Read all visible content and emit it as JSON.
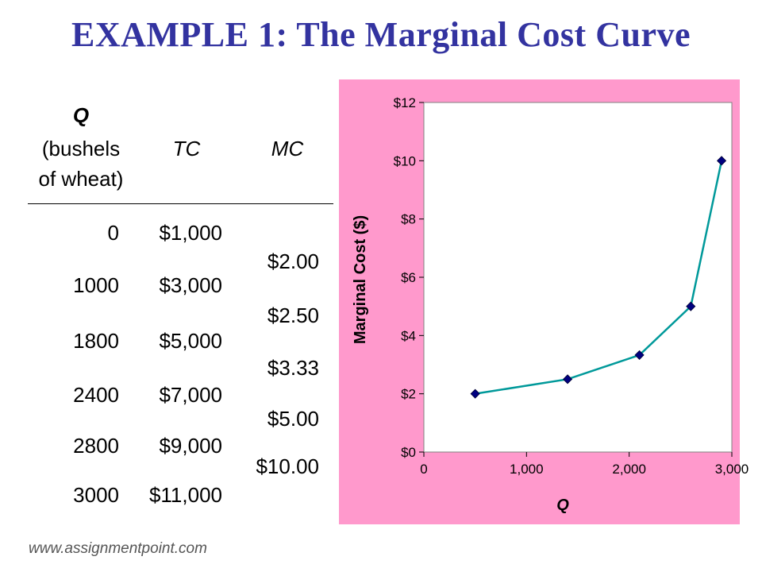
{
  "title": "EXAMPLE 1: The Marginal Cost Curve",
  "table": {
    "headers": {
      "q_line1": "Q",
      "q_line2": "(bushels",
      "q_line3": "of wheat)",
      "tc": "TC",
      "mc": "MC"
    },
    "q_values": [
      "0",
      "1000",
      "1800",
      "2400",
      "2800",
      "3000"
    ],
    "tc_values": [
      "$1,000",
      "$3,000",
      "$5,000",
      "$7,000",
      "$9,000",
      "$11,000"
    ],
    "mc_values": [
      "$2.00",
      "$2.50",
      "$3.33",
      "$5.00",
      "$10.00"
    ]
  },
  "chart_data": {
    "type": "line",
    "title": "",
    "xlabel": "Q",
    "ylabel": "Marginal Cost ($)",
    "x": [
      500,
      1400,
      2100,
      2600,
      2900
    ],
    "y": [
      2.0,
      2.5,
      3.33,
      5.0,
      10.0
    ],
    "xlim": [
      0,
      3000
    ],
    "ylim": [
      0,
      12
    ],
    "x_ticks": [
      "0",
      "1,000",
      "2,000",
      "3,000"
    ],
    "y_ticks": [
      "$0",
      "$2",
      "$4",
      "$6",
      "$8",
      "$10",
      "$12"
    ],
    "grid": false,
    "legend": "none",
    "colors": {
      "line": "#00999a",
      "marker": "#000080",
      "background": "#ff99cc",
      "plot_area": "#ffffff"
    }
  },
  "footer": "www.assignmentpoint.com"
}
